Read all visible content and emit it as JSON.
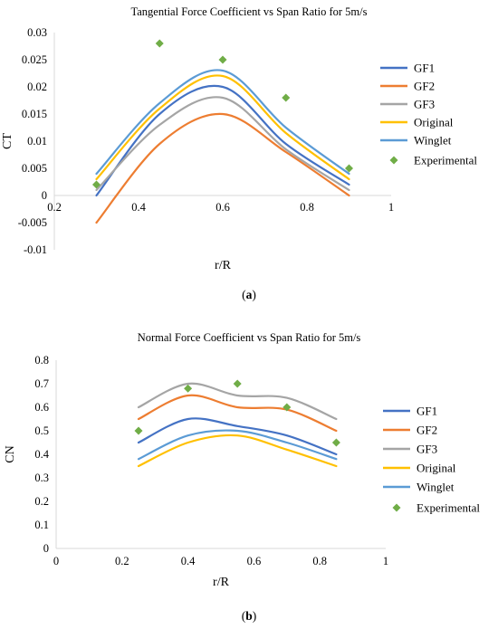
{
  "colors": {
    "GF1": "#4472c4",
    "GF2": "#ed7d31",
    "GF3": "#a5a5a5",
    "Original": "#ffc000",
    "Winglet": "#5b9bd5",
    "Experimental": "#70ad47",
    "axis": "#d9d9d9"
  },
  "chart_data": [
    {
      "type": "line",
      "title": "Tangential Force Coefficient vs Span Ratio for 5m/s",
      "xlabel": "r/R",
      "ylabel": "CT",
      "caption": "a",
      "xlim": [
        0.2,
        1
      ],
      "ylim": [
        -0.01,
        0.03
      ],
      "x_ticks": [
        "0.2",
        "0.4",
        "0.6",
        "0.8",
        "1"
      ],
      "y_ticks": [
        "-0.01",
        "-0.005",
        "0",
        "0.005",
        "0.01",
        "0.015",
        "0.02",
        "0.025",
        "0.03"
      ],
      "grid": false,
      "legend": "right",
      "x": [
        0.3,
        0.45,
        0.6,
        0.75,
        0.9
      ],
      "series": [
        {
          "name": "GF1",
          "values": [
            0.0,
            0.015,
            0.02,
            0.0095,
            0.002
          ]
        },
        {
          "name": "GF2",
          "values": [
            -0.005,
            0.0095,
            0.015,
            0.008,
            0.0
          ]
        },
        {
          "name": "GF3",
          "values": [
            0.001,
            0.013,
            0.018,
            0.0085,
            0.001
          ]
        },
        {
          "name": "Original",
          "values": [
            0.003,
            0.016,
            0.022,
            0.0115,
            0.003
          ]
        },
        {
          "name": "Winglet",
          "values": [
            0.004,
            0.017,
            0.023,
            0.0125,
            0.004
          ]
        }
      ],
      "scatter": {
        "name": "Experimental",
        "x": [
          0.3,
          0.45,
          0.6,
          0.75,
          0.9
        ],
        "values": [
          0.002,
          0.028,
          0.025,
          0.018,
          0.005
        ]
      }
    },
    {
      "type": "line",
      "title": "Normal Force Coefficient vs Span Ratio for 5m/s",
      "xlabel": "r/R",
      "ylabel": "CN",
      "caption": "b",
      "xlim": [
        0,
        1
      ],
      "ylim": [
        0,
        0.8
      ],
      "x_ticks": [
        "0",
        "0.2",
        "0.4",
        "0.6",
        "0.8",
        "1"
      ],
      "y_ticks": [
        "0",
        "0.1",
        "0.2",
        "0.3",
        "0.4",
        "0.5",
        "0.6",
        "0.7",
        "0.8"
      ],
      "grid": false,
      "legend": "right",
      "x": [
        0.25,
        0.4,
        0.55,
        0.7,
        0.85
      ],
      "series": [
        {
          "name": "GF1",
          "values": [
            0.45,
            0.55,
            0.52,
            0.48,
            0.4
          ]
        },
        {
          "name": "GF2",
          "values": [
            0.55,
            0.65,
            0.6,
            0.59,
            0.5
          ]
        },
        {
          "name": "GF3",
          "values": [
            0.6,
            0.7,
            0.65,
            0.64,
            0.55
          ]
        },
        {
          "name": "Original",
          "values": [
            0.35,
            0.45,
            0.48,
            0.42,
            0.35
          ]
        },
        {
          "name": "Winglet",
          "values": [
            0.38,
            0.48,
            0.5,
            0.45,
            0.38
          ]
        }
      ],
      "scatter": {
        "name": "Experimental",
        "x": [
          0.25,
          0.4,
          0.55,
          0.7,
          0.85
        ],
        "values": [
          0.5,
          0.68,
          0.7,
          0.6,
          0.45
        ]
      }
    }
  ]
}
